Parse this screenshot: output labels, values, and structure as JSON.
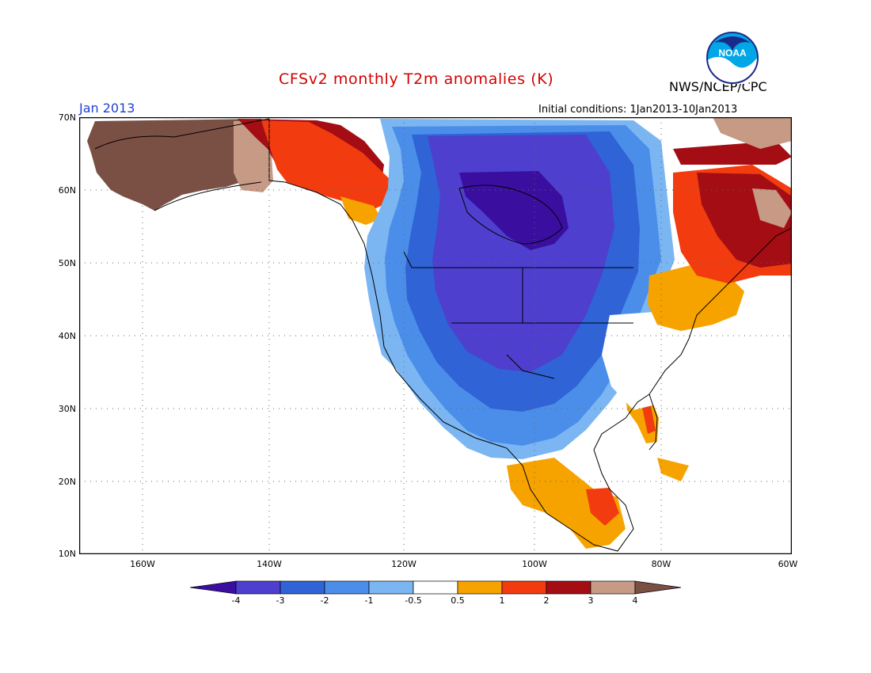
{
  "header": {
    "title": "CFSv2 monthly T2m anomalies (K)",
    "agency": "NWS/NCEP/CPC",
    "logo_text": "NOAA",
    "month": "Jan 2013",
    "initial_conditions_label": "Initial conditions:",
    "initial_conditions_range": "1Jan2013-10Jan2013"
  },
  "map": {
    "lat_labels": [
      "70N",
      "60N",
      "50N",
      "40N",
      "30N",
      "20N",
      "10N"
    ],
    "lon_labels": [
      "160W",
      "140W",
      "120W",
      "100W",
      "80W",
      "60W"
    ],
    "region": "North America",
    "projection": "cylindrical equidistant",
    "grid": "dotted"
  },
  "colorbar": {
    "labels": [
      "-4",
      "-3",
      "-2",
      "-1",
      "-0.5",
      "0.5",
      "1",
      "2",
      "3",
      "4"
    ],
    "colors": [
      "#3a0fa0",
      "#4e3fcf",
      "#2f63d6",
      "#4b8eea",
      "#7bb6f2",
      "#ffffff",
      "#f6a300",
      "#f23c0f",
      "#a40d14",
      "#c79a86",
      "#7a4f44"
    ],
    "units": "K"
  }
}
